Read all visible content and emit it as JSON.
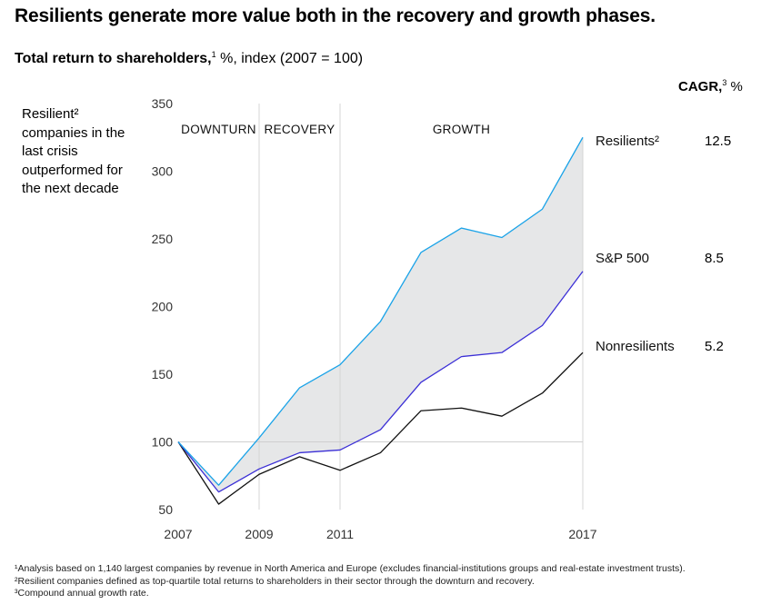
{
  "header": {
    "title": "Resilients generate more value both in the recovery and growth phases.",
    "subtitle_bold": "Total return to shareholders,",
    "subtitle_sup": "1",
    "subtitle_rest": " %, index (2007 = 100)",
    "cagr_label": "CAGR,",
    "cagr_sup": "3",
    "cagr_unit": " %"
  },
  "sidenote": "Resilient² companies in the last crisis outperformed for the next decade",
  "footnotes": [
    "¹Analysis based on 1,140 largest companies by revenue in North America and Europe (excludes financial-institutions groups and real-estate investment trusts).",
    "²Resilient companies defined as top-quartile total returns to shareholders in their sector through the downturn and recovery.",
    "³Compound annual growth rate."
  ],
  "colors": {
    "resilients": "#1aa3e8",
    "sp500": "#3b2fd6",
    "nonresilients": "#111111",
    "band_fill": "#e6e7e8",
    "divider": "#d4d4d4"
  },
  "chart_data": {
    "type": "line",
    "x": [
      2007,
      2008,
      2009,
      2010,
      2011,
      2012,
      2013,
      2014,
      2015,
      2016,
      2017
    ],
    "x_tick_labels": [
      "2007",
      "2009",
      "2011",
      "2017"
    ],
    "x_tick_values": [
      2007,
      2009,
      2011,
      2017
    ],
    "y_ticks": [
      50,
      100,
      150,
      200,
      250,
      300,
      350
    ],
    "ylim": [
      50,
      350
    ],
    "xlim": [
      2007,
      2017
    ],
    "reference_line": 100,
    "phases": [
      {
        "label": "DOWNTURN",
        "start": 2007,
        "end": 2009
      },
      {
        "label": "RECOVERY",
        "start": 2009,
        "end": 2011
      },
      {
        "label": "GROWTH",
        "start": 2011,
        "end": 2017
      }
    ],
    "series": [
      {
        "name": "Resilients²",
        "cagr": "12.5",
        "values": [
          100,
          68,
          103,
          140,
          157,
          189,
          240,
          258,
          251,
          272,
          325
        ]
      },
      {
        "name": "S&P 500",
        "cagr": "8.5",
        "values": [
          100,
          63,
          80,
          92,
          94,
          109,
          144,
          163,
          166,
          186,
          226
        ]
      },
      {
        "name": "Nonresilients",
        "cagr": "5.2",
        "values": [
          100,
          54,
          76,
          89,
          79,
          92,
          123,
          125,
          119,
          136,
          166
        ]
      }
    ],
    "shaded_band": "between Resilients and S&P 500"
  }
}
